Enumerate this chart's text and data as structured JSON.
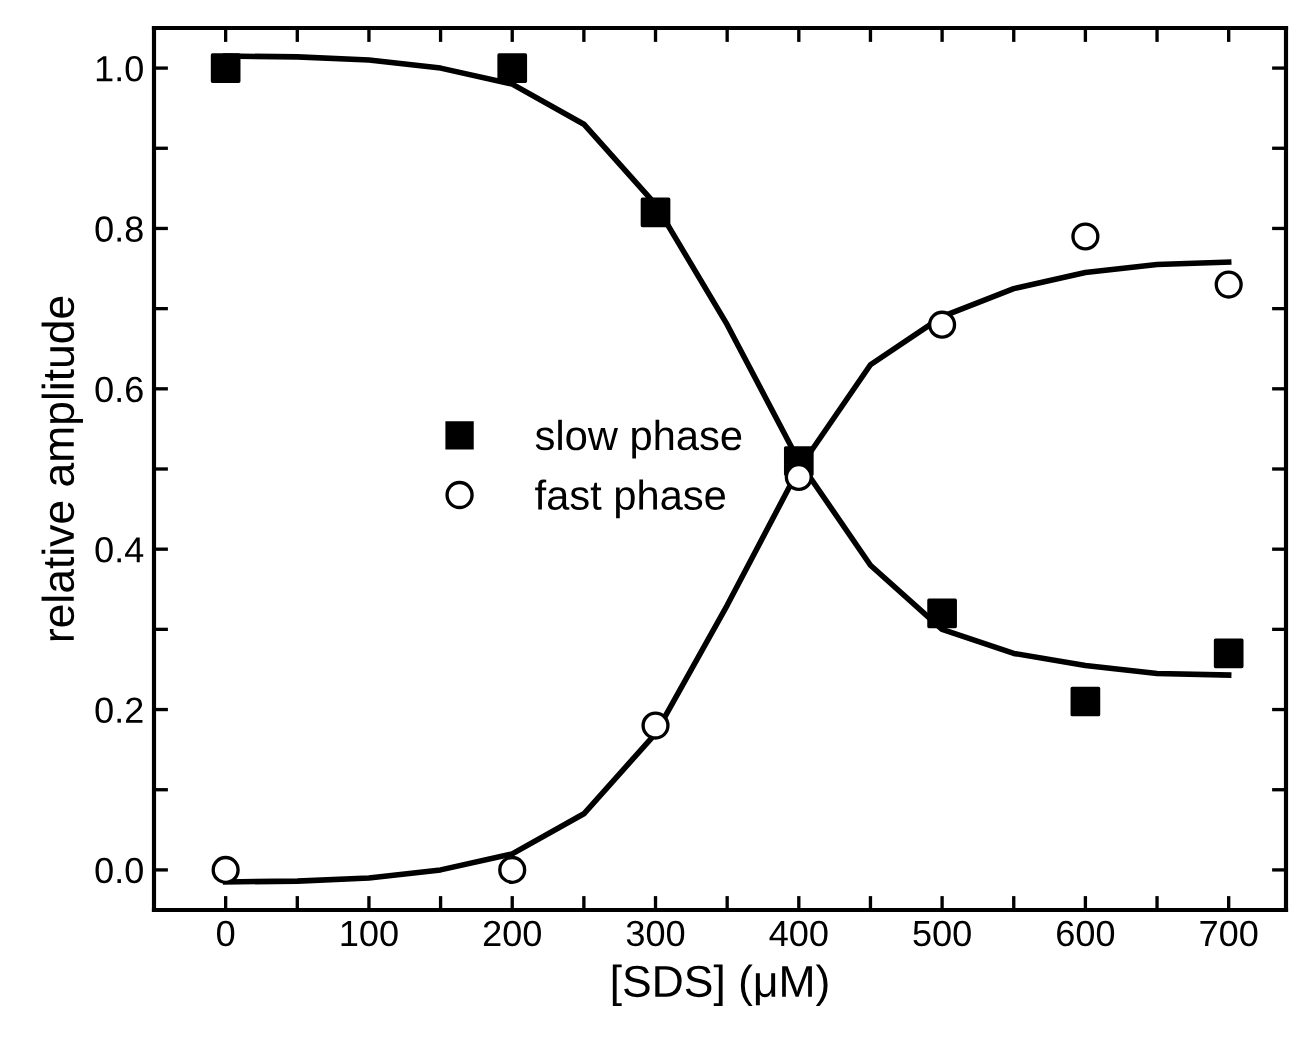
{
  "chart_data": {
    "type": "scatter",
    "xlabel": "[SDS] (μM)",
    "ylabel": "relative amplitude",
    "x": [
      0,
      200,
      300,
      400,
      500,
      600,
      700
    ],
    "series": [
      {
        "name": "slow phase",
        "color": "#000000",
        "marker": "square",
        "values": [
          1.0,
          1.0,
          0.82,
          0.51,
          0.32,
          0.21,
          0.27
        ]
      },
      {
        "name": "fast phase",
        "color": "#000000",
        "marker": "circle",
        "values": [
          0.0,
          0.0,
          0.18,
          0.49,
          0.68,
          0.79,
          0.73
        ]
      },
      {
        "type": "line",
        "color": "#000000",
        "marker": "none",
        "line_style": "solid",
        "x": [
          0,
          50,
          100,
          150,
          200,
          250,
          300,
          350,
          400,
          450,
          500,
          550,
          600,
          650,
          700
        ],
        "values": [
          1.015,
          1.014,
          1.01,
          1.0,
          0.98,
          0.93,
          0.83,
          0.68,
          0.51,
          0.38,
          0.3,
          0.27,
          0.255,
          0.245,
          0.243
        ]
      },
      {
        "type": "line",
        "color": "#000000",
        "marker": "none",
        "line_style": "solid",
        "x": [
          0,
          50,
          100,
          150,
          200,
          250,
          300,
          350,
          400,
          450,
          500,
          550,
          600,
          650,
          700
        ],
        "values": [
          -0.015,
          -0.014,
          -0.01,
          0.0,
          0.02,
          0.07,
          0.17,
          0.33,
          0.5,
          0.63,
          0.69,
          0.725,
          0.745,
          0.755,
          0.758
        ]
      }
    ],
    "xlim": [
      -50,
      740
    ],
    "ylim": [
      -0.05,
      1.05
    ],
    "xticks": [
      0,
      {
        "value": 50,
        "label": null
      },
      100,
      {
        "value": 150,
        "label": null
      },
      200,
      {
        "value": 250,
        "label": null
      },
      300,
      {
        "value": 350,
        "label": null
      },
      400,
      {
        "value": 450,
        "label": null
      },
      500,
      {
        "value": 550,
        "label": null
      },
      600,
      {
        "value": 650,
        "label": null
      },
      700
    ],
    "yticks": [
      {
        "value": 0,
        "label": "0.0"
      },
      {
        "value": 0.1,
        "label": null
      },
      {
        "value": 0.2,
        "label": "0.2"
      },
      {
        "value": 0.3,
        "label": null
      },
      {
        "value": 0.4,
        "label": "0.4"
      },
      {
        "value": 0.5,
        "label": null
      },
      {
        "value": 0.6,
        "label": "0.6"
      },
      {
        "value": 0.7,
        "label": null
      },
      {
        "value": 0.8,
        "label": "0.8"
      },
      {
        "value": 0.9,
        "label": null
      },
      {
        "value": 1.0,
        "label": "1.0"
      }
    ],
    "legend": "left",
    "grid": false
  }
}
